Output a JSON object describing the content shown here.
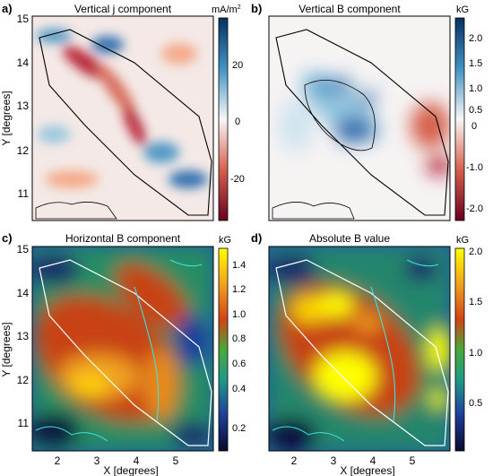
{
  "chart_data": [
    {
      "type": "heatmap",
      "panel_label": "a)",
      "title": "Vertical j component",
      "unit": "mA/m",
      "unit_exp": "2",
      "ylabel": "Y [degrees]",
      "yticks": [
        "15",
        "14",
        "13",
        "12",
        "11"
      ],
      "cbar_ticks": [
        "20",
        "0",
        "-20"
      ],
      "colorscale": "red-white-blue"
    },
    {
      "type": "heatmap",
      "panel_label": "b)",
      "title": "Vertical B component",
      "unit": "kG",
      "cbar_ticks": [
        "2.0",
        "1.5",
        "1.0",
        "0.5",
        "0",
        "-1.0",
        "-2.0"
      ],
      "colorscale": "red-white-blue"
    },
    {
      "type": "heatmap",
      "panel_label": "c)",
      "title": "Horizontal B component",
      "unit": "kG",
      "xlabel": "X [degrees]",
      "ylabel": "Y [degrees]",
      "xticks": [
        "2",
        "3",
        "4",
        "5"
      ],
      "yticks": [
        "15",
        "14",
        "13",
        "12",
        "11"
      ],
      "cbar_ticks": [
        "1.4",
        "1.2",
        "1.0",
        "0.8",
        "0.6",
        "0.4",
        "0.2"
      ],
      "colorscale": "rainbow"
    },
    {
      "type": "heatmap",
      "panel_label": "d)",
      "title": "Absolute B value",
      "unit": "kG",
      "xlabel": "X [degrees]",
      "xticks": [
        "2",
        "3",
        "4",
        "5"
      ],
      "cbar_ticks": [
        "2.0",
        "1.5",
        "1.0",
        "0.5"
      ],
      "colorscale": "rainbow"
    }
  ],
  "colors": {
    "diverging": [
      "#67001f",
      "#d6604d",
      "#f7f7f7",
      "#4393c3",
      "#053061"
    ],
    "rainbow": [
      "#0a0a2e",
      "#1f3f9a",
      "#1e9a86",
      "#2fa33a",
      "#c44d16",
      "#e88a1a",
      "#ffff00"
    ],
    "region_outline_ab": "#000000",
    "region_outline_cd": "#ffffff",
    "contour_cd": "#40e0e0"
  }
}
